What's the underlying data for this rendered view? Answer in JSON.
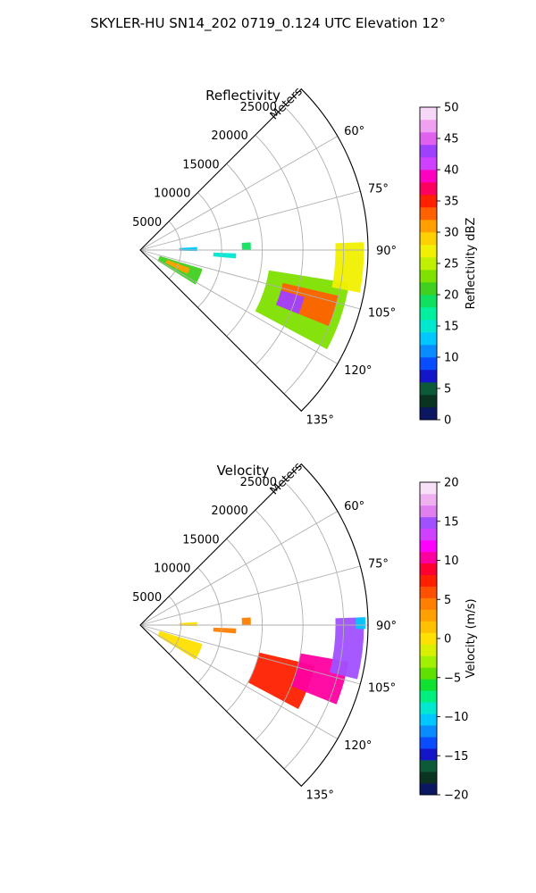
{
  "title": "SKYLER-HU  SN14_202  0719_0.124 UTC Elevation 12°",
  "chart_data": [
    {
      "type": "heatmap",
      "title": "Reflectivity",
      "projection": "polar-sector",
      "radial_label": "Meters",
      "radial_ticks": [
        5000,
        10000,
        15000,
        20000,
        25000
      ],
      "radial_tick_labels": [
        "5000",
        "10000",
        "15000",
        "20000",
        "25000"
      ],
      "rlim": [
        0,
        28000
      ],
      "azimuth_range_deg": [
        45,
        135
      ],
      "azimuth_ticks": [
        60,
        75,
        90,
        105,
        120,
        135
      ],
      "azimuth_tick_labels": [
        "60°",
        "75°",
        "90°",
        "105°",
        "120°",
        "135°"
      ],
      "grid": true,
      "colorbar": {
        "label": "Reflectivity dBZ",
        "range": [
          0,
          50
        ],
        "ticks": [
          0,
          5,
          10,
          15,
          20,
          25,
          30,
          35,
          40,
          45,
          50
        ],
        "tick_labels": [
          "0",
          "5",
          "10",
          "15",
          "20",
          "25",
          "30",
          "35",
          "40",
          "45",
          "50"
        ],
        "colors": [
          "#0b1760",
          "#0a3322",
          "#0d5a3a",
          "#1414c8",
          "#0a4cff",
          "#0a8cff",
          "#00c8ff",
          "#00e8d0",
          "#00f0a0",
          "#10e060",
          "#40d020",
          "#80e000",
          "#c0f000",
          "#f0f000",
          "#ffd000",
          "#ffa000",
          "#ff6000",
          "#ff2000",
          "#ff0060",
          "#ff00c0",
          "#d040ff",
          "#a040ff",
          "#e060f0",
          "#f0a0f0",
          "#f8d8f8"
        ]
      },
      "echo_regions": [
        {
          "az": [
            87,
            91
          ],
          "r": [
            4800,
            7000
          ],
          "value": 13
        },
        {
          "az": [
            86,
            90
          ],
          "r": [
            12500,
            13600
          ],
          "value": 18
        },
        {
          "az": [
            92,
            95
          ],
          "r": [
            9000,
            11800
          ],
          "value": 14
        },
        {
          "az": [
            107,
            122
          ],
          "r": [
            2500,
            8000
          ],
          "value": 20
        },
        {
          "az": [
            110,
            117
          ],
          "r": [
            3500,
            6500
          ],
          "value": 30
        },
        {
          "az": [
            99,
            118
          ],
          "r": [
            16000,
            26000
          ],
          "value": 22
        },
        {
          "az": [
            103,
            112
          ],
          "r": [
            18000,
            25000
          ],
          "value": 32
        },
        {
          "az": [
            106,
            112
          ],
          "r": [
            18000,
            21000
          ],
          "value": 42
        },
        {
          "az": [
            88,
            101
          ],
          "r": [
            24000,
            27500
          ],
          "value": 26
        }
      ]
    },
    {
      "type": "heatmap",
      "title": "Velocity",
      "projection": "polar-sector",
      "radial_label": "Meters",
      "radial_ticks": [
        5000,
        10000,
        15000,
        20000,
        25000
      ],
      "radial_tick_labels": [
        "5000",
        "10000",
        "15000",
        "20000",
        "25000"
      ],
      "rlim": [
        0,
        28000
      ],
      "azimuth_range_deg": [
        45,
        135
      ],
      "azimuth_ticks": [
        60,
        75,
        90,
        105,
        120,
        135
      ],
      "azimuth_tick_labels": [
        "60°",
        "75°",
        "90°",
        "105°",
        "120°",
        "135°"
      ],
      "grid": true,
      "colorbar": {
        "label": "Velocity (m/s)",
        "range": [
          -20,
          20
        ],
        "ticks": [
          -20,
          -15,
          -10,
          -5,
          0,
          5,
          10,
          15,
          20
        ],
        "tick_labels": [
          "−20",
          "−15",
          "−10",
          "−5",
          "0",
          "5",
          "10",
          "15",
          "20"
        ],
        "colors": [
          "#0b1760",
          "#0a3322",
          "#0d5a3a",
          "#1414c8",
          "#0a4cff",
          "#0a8cff",
          "#00c8ff",
          "#00e8d0",
          "#00f080",
          "#10e030",
          "#60e000",
          "#a0f000",
          "#d8f000",
          "#ffe000",
          "#ffc000",
          "#ffa000",
          "#ff8000",
          "#ff5000",
          "#ff2000",
          "#ff0030",
          "#ff00a0",
          "#ff00ff",
          "#d040ff",
          "#a050ff",
          "#e080f0",
          "#f0b0f0",
          "#f8e0f8"
        ]
      },
      "echo_regions": [
        {
          "az": [
            87,
            91
          ],
          "r": [
            4800,
            7000
          ],
          "value": 0
        },
        {
          "az": [
            86,
            90
          ],
          "r": [
            12500,
            13600
          ],
          "value": 4
        },
        {
          "az": [
            92,
            95
          ],
          "r": [
            9000,
            11800
          ],
          "value": 5
        },
        {
          "az": [
            107,
            122
          ],
          "r": [
            2500,
            8000
          ],
          "value": 0
        },
        {
          "az": [
            103,
            118
          ],
          "r": [
            15000,
            22000
          ],
          "value": 8
        },
        {
          "az": [
            100,
            112
          ],
          "r": [
            20000,
            26000
          ],
          "value": 11
        },
        {
          "az": [
            88,
            104
          ],
          "r": [
            24000,
            27500
          ],
          "value": 15
        },
        {
          "az": [
            88,
            91
          ],
          "r": [
            26500,
            27700
          ],
          "value": -11
        }
      ]
    }
  ]
}
